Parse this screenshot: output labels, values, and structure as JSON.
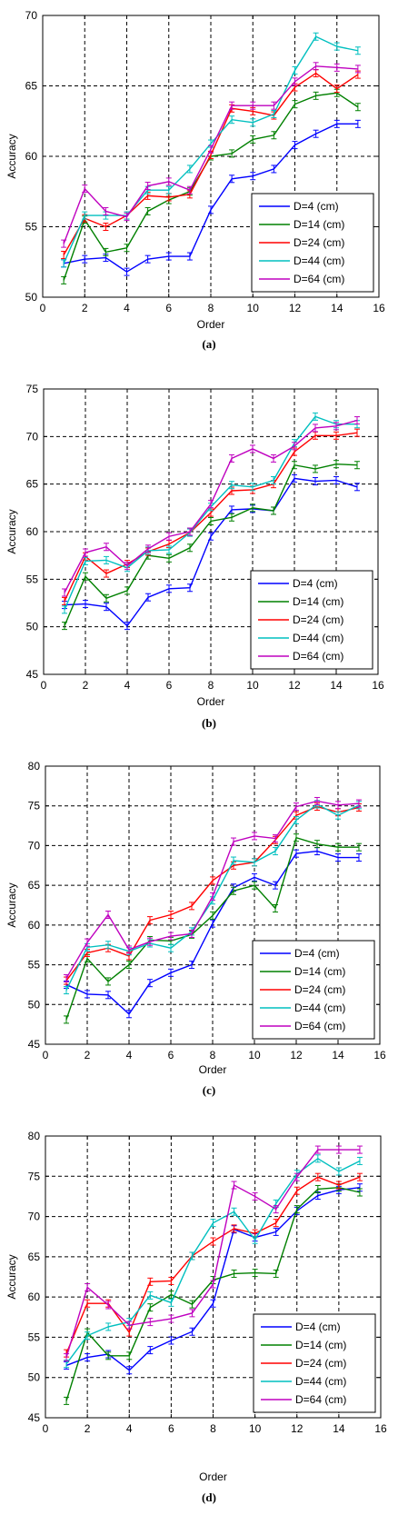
{
  "chart_data": [
    {
      "type": "line",
      "caption": "(a)",
      "xlabel": "Order",
      "ylabel": "Accuracy",
      "xlim": [
        0,
        16
      ],
      "ylim": [
        50,
        70
      ],
      "xticks": [
        0,
        2,
        4,
        6,
        8,
        10,
        12,
        14,
        16
      ],
      "yticks": [
        50,
        55,
        60,
        65,
        70
      ],
      "x": [
        1,
        2,
        3,
        4,
        5,
        6,
        7,
        8,
        9,
        10,
        11,
        12,
        13,
        14,
        15
      ],
      "grid": true,
      "legend_position": "bottom-right",
      "series": [
        {
          "name": "D=4 (cm)",
          "color": "#0000ff",
          "values": [
            52.4,
            52.7,
            52.8,
            51.8,
            52.7,
            52.9,
            52.9,
            56.2,
            58.4,
            58.6,
            59.1,
            60.8,
            61.6,
            62.3,
            62.3
          ]
        },
        {
          "name": "D=14 (cm)",
          "color": "#008000",
          "values": [
            51.2,
            55.5,
            53.2,
            53.5,
            56.1,
            56.9,
            57.5,
            60.0,
            60.2,
            61.2,
            61.5,
            63.7,
            64.3,
            64.5,
            63.5
          ]
        },
        {
          "name": "D=24 (cm)",
          "color": "#ff0000",
          "values": [
            53.0,
            55.6,
            55.0,
            55.8,
            57.2,
            57.1,
            57.3,
            60.1,
            63.4,
            63.2,
            62.9,
            64.9,
            65.9,
            64.8,
            65.8
          ]
        },
        {
          "name": "D=44 (cm)",
          "color": "#00bfbf",
          "values": [
            52.4,
            55.8,
            55.8,
            55.8,
            57.6,
            57.6,
            59.1,
            60.9,
            62.6,
            62.4,
            63.0,
            66.1,
            68.5,
            67.8,
            67.5
          ]
        },
        {
          "name": "D=64 (cm)",
          "color": "#bf00bf",
          "values": [
            53.8,
            57.7,
            56.1,
            55.7,
            57.9,
            58.2,
            57.6,
            60.5,
            63.6,
            63.6,
            63.6,
            65.3,
            66.4,
            66.3,
            66.2
          ]
        }
      ]
    },
    {
      "type": "line",
      "caption": "(b)",
      "xlabel": "Order",
      "ylabel": "Accuracy",
      "xlim": [
        0,
        16
      ],
      "ylim": [
        45,
        75
      ],
      "xticks": [
        0,
        2,
        4,
        6,
        8,
        10,
        12,
        14,
        16
      ],
      "yticks": [
        45,
        50,
        55,
        60,
        65,
        70,
        75
      ],
      "x": [
        1,
        2,
        3,
        4,
        5,
        6,
        7,
        8,
        9,
        10,
        11,
        12,
        13,
        14,
        15
      ],
      "grid": true,
      "legend_position": "bottom-right",
      "series": [
        {
          "name": "D=4 (cm)",
          "color": "#0000ff",
          "values": [
            52.3,
            52.4,
            52.1,
            50.1,
            53.1,
            54.0,
            54.1,
            59.5,
            62.3,
            62.4,
            62.2,
            65.6,
            65.3,
            65.4,
            64.7
          ]
        },
        {
          "name": "D=14 (cm)",
          "color": "#008000",
          "values": [
            50.1,
            55.3,
            53.0,
            53.8,
            57.5,
            57.2,
            58.3,
            61.1,
            61.5,
            62.5,
            62.2,
            67.0,
            66.6,
            67.1,
            67.0
          ]
        },
        {
          "name": "D=24 (cm)",
          "color": "#ff0000",
          "values": [
            52.7,
            57.4,
            55.6,
            56.6,
            57.9,
            58.7,
            59.9,
            62.0,
            64.3,
            64.4,
            65.0,
            68.4,
            70.1,
            70.1,
            70.4
          ]
        },
        {
          "name": "D=44 (cm)",
          "color": "#00bfbf",
          "values": [
            51.8,
            56.9,
            57.0,
            56.2,
            58.0,
            58.1,
            59.9,
            62.6,
            64.9,
            64.7,
            65.4,
            69.3,
            72.1,
            71.3,
            71.3
          ]
        },
        {
          "name": "D=64 (cm)",
          "color": "#bf00bf",
          "values": [
            53.6,
            57.8,
            58.4,
            56.4,
            58.2,
            59.5,
            60.0,
            62.9,
            67.7,
            68.7,
            67.7,
            69.0,
            70.9,
            71.1,
            71.7
          ]
        }
      ]
    },
    {
      "type": "line",
      "caption": "(c)",
      "xlabel": "Order",
      "ylabel": "Accuracy",
      "xlim": [
        0,
        16
      ],
      "ylim": [
        45,
        80
      ],
      "xticks": [
        0,
        2,
        4,
        6,
        8,
        10,
        12,
        14,
        16
      ],
      "yticks": [
        45,
        50,
        55,
        60,
        65,
        70,
        75,
        80
      ],
      "x": [
        1,
        2,
        3,
        4,
        5,
        6,
        7,
        8,
        9,
        10,
        11,
        12,
        13,
        14,
        15
      ],
      "grid": true,
      "legend_position": "bottom-right",
      "series": [
        {
          "name": "D=4 (cm)",
          "color": "#0000ff",
          "values": [
            52.5,
            51.3,
            51.2,
            48.8,
            52.7,
            54.0,
            55.0,
            60.2,
            64.7,
            66.0,
            65.0,
            69.0,
            69.3,
            68.5,
            68.5
          ]
        },
        {
          "name": "D=14 (cm)",
          "color": "#008000",
          "values": [
            48.1,
            55.8,
            52.9,
            55.0,
            58.1,
            58.0,
            58.8,
            61.2,
            64.3,
            65.0,
            62.1,
            71.0,
            70.2,
            69.8,
            69.8
          ]
        },
        {
          "name": "D=24 (cm)",
          "color": "#ff0000",
          "values": [
            53.0,
            56.5,
            57.1,
            56.1,
            60.6,
            61.3,
            62.4,
            65.6,
            67.5,
            67.9,
            70.7,
            73.8,
            74.9,
            74.2,
            74.8
          ]
        },
        {
          "name": "D=44 (cm)",
          "color": "#00bfbf",
          "values": [
            51.8,
            57.2,
            57.5,
            56.7,
            57.7,
            57.1,
            59.2,
            63.1,
            68.1,
            67.9,
            69.3,
            73.2,
            75.2,
            73.8,
            75.1
          ]
        },
        {
          "name": "D=64 (cm)",
          "color": "#bf00bf",
          "values": [
            53.3,
            57.8,
            61.3,
            56.9,
            57.9,
            58.6,
            58.9,
            63.6,
            70.5,
            71.2,
            70.9,
            74.9,
            75.6,
            75.1,
            75.3
          ]
        }
      ]
    },
    {
      "type": "line",
      "caption": "(d)",
      "xlabel": "Order",
      "ylabel": "Accuracy",
      "xlim": [
        0,
        16
      ],
      "ylim": [
        45,
        80
      ],
      "xticks": [
        0,
        2,
        4,
        6,
        8,
        10,
        12,
        14,
        16
      ],
      "yticks": [
        45,
        50,
        55,
        60,
        65,
        70,
        75,
        80
      ],
      "x": [
        1,
        2,
        3,
        4,
        5,
        6,
        7,
        8,
        9,
        10,
        11,
        12,
        13,
        14,
        15
      ],
      "grid": true,
      "legend_position": "bottom-right",
      "series": [
        {
          "name": "D=4 (cm)",
          "color": "#0000ff",
          "values": [
            51.5,
            52.5,
            52.9,
            50.9,
            53.4,
            54.6,
            55.7,
            59.2,
            68.4,
            67.4,
            68.1,
            70.7,
            72.6,
            73.3,
            73.6
          ]
        },
        {
          "name": "D=14 (cm)",
          "color": "#008000",
          "values": [
            47.1,
            55.6,
            52.7,
            52.7,
            58.7,
            60.3,
            59.1,
            62.1,
            62.9,
            63.0,
            62.9,
            70.9,
            73.4,
            73.6,
            73.0
          ]
        },
        {
          "name": "D=24 (cm)",
          "color": "#ff0000",
          "values": [
            53.0,
            59.2,
            59.2,
            55.6,
            61.9,
            62.0,
            65.1,
            66.9,
            68.5,
            67.9,
            69.2,
            73.2,
            74.9,
            73.9,
            74.9
          ]
        },
        {
          "name": "D=44 (cm)",
          "color": "#00bfbf",
          "values": [
            51.7,
            55.2,
            56.3,
            56.9,
            60.2,
            59.3,
            65.1,
            69.2,
            70.6,
            67.1,
            71.6,
            75.3,
            77.2,
            75.6,
            76.9
          ]
        },
        {
          "name": "D=64 (cm)",
          "color": "#bf00bf",
          "values": [
            52.5,
            61.2,
            59.0,
            56.5,
            56.9,
            57.3,
            58.0,
            61.6,
            73.9,
            72.5,
            70.9,
            74.9,
            78.3,
            78.3,
            78.3
          ]
        }
      ]
    }
  ]
}
